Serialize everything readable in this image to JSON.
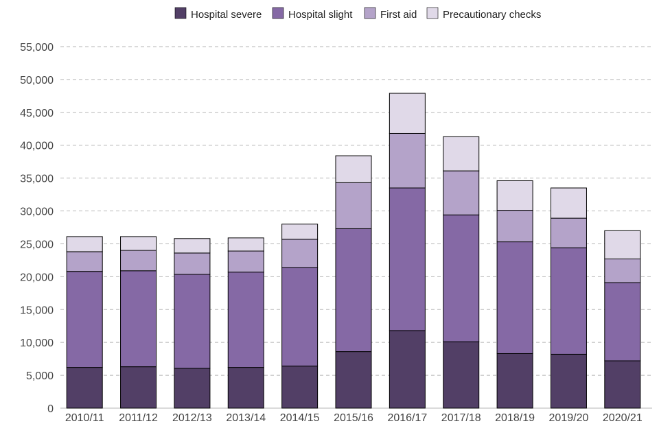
{
  "chart_data": {
    "type": "bar",
    "stacked": true,
    "title": "",
    "xlabel": "",
    "ylabel": "",
    "ylim": [
      0,
      55000
    ],
    "yticks": [
      0,
      5000,
      10000,
      15000,
      20000,
      25000,
      30000,
      35000,
      40000,
      45000,
      50000,
      55000
    ],
    "grid": true,
    "legend_position": "top",
    "categories": [
      "2010/11",
      "2011/12",
      "2012/13",
      "2013/14",
      "2014/15",
      "2015/16",
      "2016/17",
      "2017/18",
      "2018/19",
      "2019/20",
      "2020/21"
    ],
    "series": [
      {
        "name": "Hospital severe",
        "color": "#523f66",
        "values": [
          6200,
          6300,
          6050,
          6200,
          6400,
          8600,
          11800,
          10100,
          8300,
          8200,
          7200
        ]
      },
      {
        "name": "Hospital slight",
        "color": "#8569a5",
        "values": [
          14600,
          14600,
          14300,
          14500,
          15000,
          18700,
          21700,
          19300,
          17000,
          16200,
          11900
        ]
      },
      {
        "name": "First aid",
        "color": "#b4a3c9",
        "values": [
          3000,
          3100,
          3250,
          3200,
          4300,
          7000,
          8300,
          6700,
          4800,
          4500,
          3600
        ]
      },
      {
        "name": "Precautionary checks",
        "color": "#e0d9e8",
        "values": [
          2300,
          2100,
          2200,
          2000,
          2300,
          4100,
          6100,
          5200,
          4500,
          4600,
          4300
        ]
      }
    ]
  }
}
